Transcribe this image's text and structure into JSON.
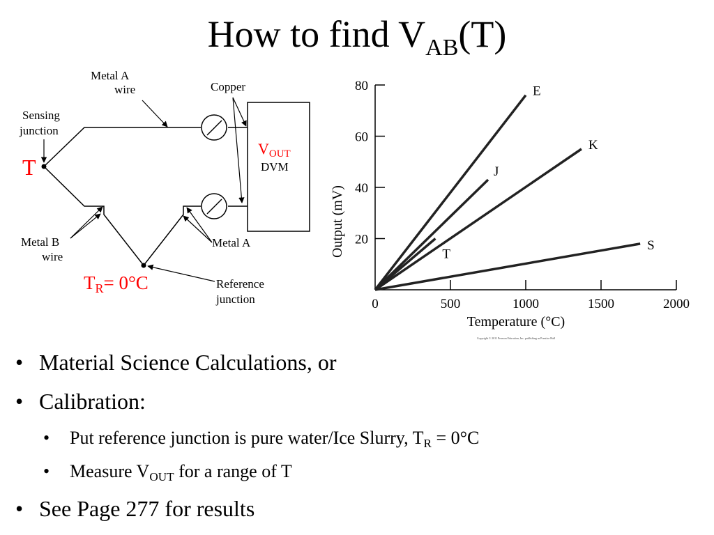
{
  "slide": {
    "title_main": "How to find V",
    "title_sub": "AB",
    "title_end": "(T)"
  },
  "circuit": {
    "label_metal_a_wire_1": "Metal A",
    "label_metal_a_wire_2": "wire",
    "label_copper": "Copper",
    "label_sensing_1": "Sensing",
    "label_sensing_2": "junction",
    "label_t": "T",
    "label_vout_main": "V",
    "label_vout_sub": "OUT",
    "label_dvm": "DVM",
    "label_metal_b_1": "Metal B",
    "label_metal_b_2": "wire",
    "label_metal_a": "Metal A",
    "label_tr_main": "T",
    "label_tr_sub": "R",
    "label_tr_rest": "= 0°C",
    "label_reference_1": "Reference",
    "label_reference_2": "junction",
    "accent_color": "#ff0000"
  },
  "chart_data": {
    "type": "line",
    "xlabel": "Temperature (°C)",
    "ylabel": "Output (mV)",
    "xlim": [
      0,
      2000
    ],
    "ylim": [
      0,
      80
    ],
    "x_ticks": [
      0,
      500,
      1000,
      1500,
      2000
    ],
    "y_ticks": [
      20,
      40,
      60,
      80
    ],
    "grid": false,
    "copyright": "Copyright © 2011 Pearson Education, Inc. publishing as Prentice Hall",
    "series": [
      {
        "name": "E",
        "points": [
          [
            0,
            0
          ],
          [
            1000,
            76
          ]
        ]
      },
      {
        "name": "J",
        "points": [
          [
            0,
            0
          ],
          [
            750,
            43
          ]
        ]
      },
      {
        "name": "K",
        "points": [
          [
            0,
            0
          ],
          [
            1370,
            55
          ]
        ]
      },
      {
        "name": "T",
        "points": [
          [
            0,
            0
          ],
          [
            400,
            20
          ]
        ]
      },
      {
        "name": "S",
        "points": [
          [
            0,
            0
          ],
          [
            1760,
            18
          ]
        ]
      }
    ]
  },
  "bullets": {
    "item1": "Material Science Calculations, or",
    "item2": "Calibration:",
    "sub1_pre": "Put reference junction is pure water/Ice Slurry, T",
    "sub1_sub": "R",
    "sub1_post": " = 0°C",
    "sub2_pre": "Measure V",
    "sub2_sub": "OUT",
    "sub2_post": " for a range of T",
    "item3": "See Page 277 for results",
    "bullet_char": "•"
  }
}
